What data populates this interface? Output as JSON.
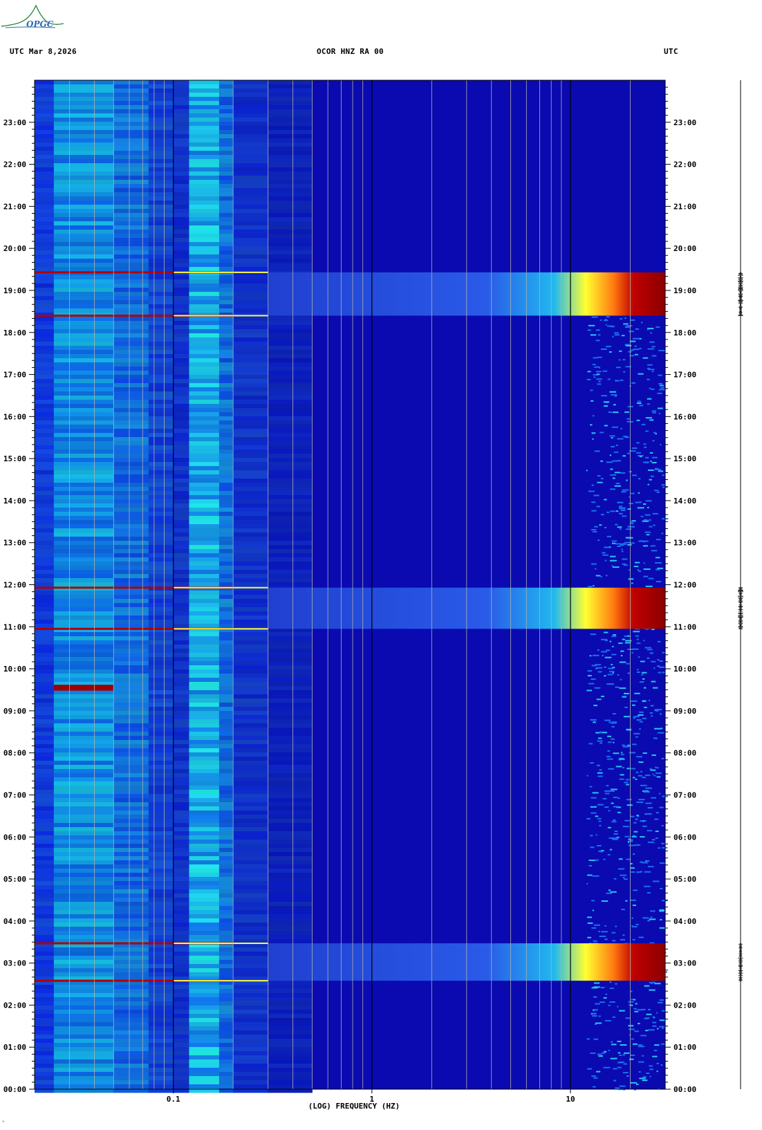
{
  "header": {
    "left": "UTC  Mar 8,2026",
    "title": "OCOR HNZ RA 00",
    "right": "UTC"
  },
  "logo": {
    "text": "OPGC"
  },
  "footer": {
    "mark": "ᴹ"
  },
  "colors": {
    "background": "#0000a8",
    "high_energy": "#8b0000",
    "medium_energy": "#ffff00",
    "low_energy": "#00d4ff"
  },
  "chart_data": {
    "type": "heatmap",
    "title": "OCOR HNZ RA 00",
    "xlabel": "(LOG) FREQUENCY (HZ)",
    "ylabel": "",
    "x_scale": "log",
    "xlim": [
      0.02,
      30
    ],
    "x_ticks": [
      {
        "value": 0.1,
        "label": "0.1"
      },
      {
        "value": 1,
        "label": "1"
      },
      {
        "value": 10,
        "label": "10"
      }
    ],
    "ylim": [
      0,
      24
    ],
    "y_ticks": [
      {
        "value": 0,
        "label": "00:00"
      },
      {
        "value": 1,
        "label": "01:00"
      },
      {
        "value": 2,
        "label": "02:00"
      },
      {
        "value": 3,
        "label": "03:00"
      },
      {
        "value": 4,
        "label": "04:00"
      },
      {
        "value": 5,
        "label": "05:00"
      },
      {
        "value": 6,
        "label": "06:00"
      },
      {
        "value": 7,
        "label": "07:00"
      },
      {
        "value": 8,
        "label": "08:00"
      },
      {
        "value": 9,
        "label": "09:00"
      },
      {
        "value": 10,
        "label": "10:00"
      },
      {
        "value": 11,
        "label": "11:00"
      },
      {
        "value": 12,
        "label": "12:00"
      },
      {
        "value": 13,
        "label": "13:00"
      },
      {
        "value": 14,
        "label": "14:00"
      },
      {
        "value": 15,
        "label": "15:00"
      },
      {
        "value": 16,
        "label": "16:00"
      },
      {
        "value": 17,
        "label": "17:00"
      },
      {
        "value": 18,
        "label": "18:00"
      },
      {
        "value": 19,
        "label": "19:00"
      },
      {
        "value": 20,
        "label": "20:00"
      },
      {
        "value": 21,
        "label": "21:00"
      },
      {
        "value": 22,
        "label": "22:00"
      },
      {
        "value": 23,
        "label": "23:00"
      }
    ],
    "energy_bursts": [
      {
        "start_hour": 2.58,
        "end_hour": 3.47
      },
      {
        "start_hour": 10.95,
        "end_hour": 11.93
      },
      {
        "start_hour": 18.4,
        "end_hour": 19.43
      }
    ],
    "low_frequency_event": {
      "start_hour": 9.48,
      "end_hour": 9.62,
      "max_freq_hz": 0.05
    },
    "microseism_band_hz": [
      0.11,
      0.17
    ],
    "grid": true
  }
}
